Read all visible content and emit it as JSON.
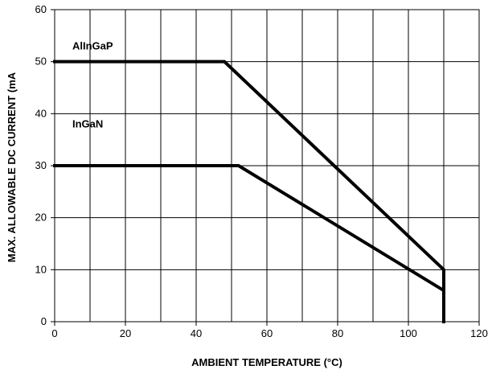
{
  "chart_data": {
    "type": "line",
    "title": "",
    "xlabel": "AMBIENT TEMPERATURE (°C)",
    "ylabel": "MAX. ALLOWABLE DC CURRENT (mA",
    "xlim": [
      0,
      120
    ],
    "ylim": [
      0,
      60
    ],
    "x_ticks": [
      0,
      20,
      40,
      60,
      80,
      100,
      120
    ],
    "y_ticks": [
      0,
      10,
      20,
      30,
      40,
      50,
      60
    ],
    "x_grid": [
      0,
      10,
      20,
      30,
      40,
      50,
      60,
      70,
      80,
      90,
      100,
      110,
      120
    ],
    "y_grid": [
      0,
      10,
      20,
      30,
      40,
      50,
      60
    ],
    "grid": true,
    "legend": "none",
    "series": [
      {
        "name": "AlInGaP",
        "color": "#000000",
        "label_anchor": {
          "x": 5,
          "y": 53
        },
        "points": [
          {
            "x": 0,
            "y": 50
          },
          {
            "x": 48,
            "y": 50
          },
          {
            "x": 110,
            "y": 10
          },
          {
            "x": 110,
            "y": 0
          }
        ]
      },
      {
        "name": "InGaN",
        "color": "#000000",
        "label_anchor": {
          "x": 5,
          "y": 38
        },
        "points": [
          {
            "x": 0,
            "y": 30
          },
          {
            "x": 52,
            "y": 30
          },
          {
            "x": 110,
            "y": 6
          },
          {
            "x": 110,
            "y": 0
          }
        ]
      }
    ]
  }
}
